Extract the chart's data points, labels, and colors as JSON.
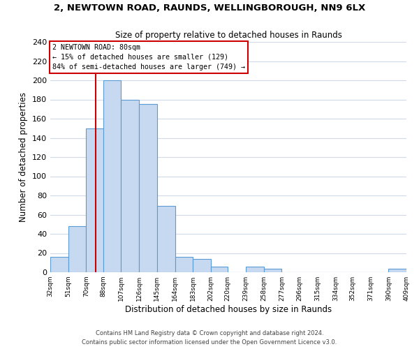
{
  "title1": "2, NEWTOWN ROAD, RAUNDS, WELLINGBOROUGH, NN9 6LX",
  "title2": "Size of property relative to detached houses in Raunds",
  "xlabel": "Distribution of detached houses by size in Raunds",
  "ylabel": "Number of detached properties",
  "bar_edges": [
    32,
    51,
    70,
    88,
    107,
    126,
    145,
    164,
    183,
    202,
    220,
    239,
    258,
    277,
    296,
    315,
    334,
    352,
    371,
    390,
    409
  ],
  "bar_heights": [
    16,
    48,
    150,
    200,
    180,
    175,
    69,
    16,
    14,
    6,
    0,
    6,
    4,
    0,
    0,
    0,
    0,
    0,
    0,
    4
  ],
  "tick_labels": [
    "32sqm",
    "51sqm",
    "70sqm",
    "88sqm",
    "107sqm",
    "126sqm",
    "145sqm",
    "164sqm",
    "183sqm",
    "202sqm",
    "220sqm",
    "239sqm",
    "258sqm",
    "277sqm",
    "296sqm",
    "315sqm",
    "334sqm",
    "352sqm",
    "371sqm",
    "390sqm",
    "409sqm"
  ],
  "bar_color": "#c6d9f0",
  "bar_edge_color": "#5b9bd5",
  "vline_x": 80,
  "vline_color": "#cc0000",
  "annotation_title": "2 NEWTOWN ROAD: 80sqm",
  "annotation_line1": "← 15% of detached houses are smaller (129)",
  "annotation_line2": "84% of semi-detached houses are larger (749) →",
  "annotation_box_color": "#ffffff",
  "annotation_box_edge": "#cc0000",
  "ylim": [
    0,
    240
  ],
  "yticks": [
    0,
    20,
    40,
    60,
    80,
    100,
    120,
    140,
    160,
    180,
    200,
    220,
    240
  ],
  "footer1": "Contains HM Land Registry data © Crown copyright and database right 2024.",
  "footer2": "Contains public sector information licensed under the Open Government Licence v3.0.",
  "bg_color": "#ffffff",
  "grid_color": "#d0daea"
}
